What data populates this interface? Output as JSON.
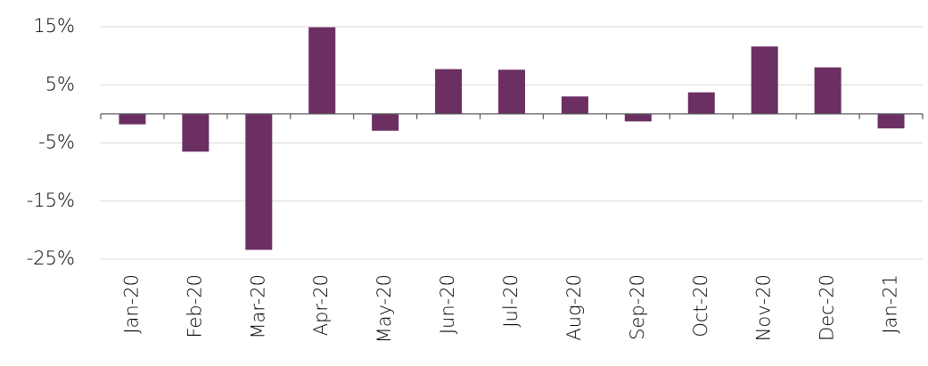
{
  "chart_data": {
    "type": "bar",
    "categories": [
      "Jan-20",
      "Feb-20",
      "Mar-20",
      "Apr-20",
      "May-20",
      "Jun-20",
      "Jul-20",
      "Aug-20",
      "Sep-20",
      "Oct-20",
      "Nov-20",
      "Dec-20",
      "Jan-21"
    ],
    "values": [
      -1.8,
      -6.5,
      -23.4,
      14.9,
      -2.9,
      7.7,
      7.6,
      3.0,
      -1.3,
      3.7,
      11.6,
      8.0,
      -2.5
    ],
    "color": "#6b2f62",
    "ylim": [
      -25,
      15
    ],
    "yticks": [
      {
        "value": -25,
        "label": "-25%"
      },
      {
        "value": -15,
        "label": "-15%"
      },
      {
        "value": -5,
        "label": "-5%"
      },
      {
        "value": 5,
        "label": "5%"
      },
      {
        "value": 15,
        "label": "15%"
      }
    ],
    "grid": true
  }
}
